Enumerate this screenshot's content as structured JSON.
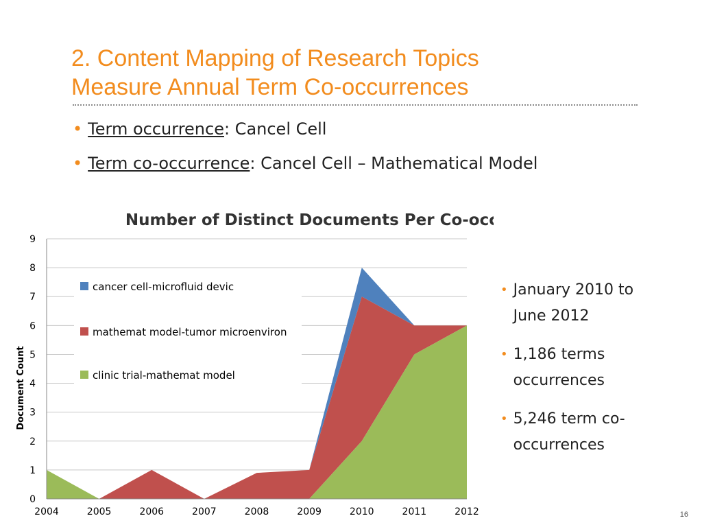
{
  "slide": {
    "title_line1": "2. Content Mapping of Research Topics",
    "title_line2": "Measure Annual Term Co-occurrences",
    "bullets": [
      {
        "term": "Term occurrence",
        "rest": ": Cancel Cell"
      },
      {
        "term": "Term co-occurrence",
        "rest": ": Cancel Cell – Mathematical Model"
      }
    ],
    "side_bullets": [
      "January 2010 to June 2012",
      "1,186 terms occurrences",
      "5,246 term co-occurrences"
    ],
    "page_number": "16"
  },
  "colors": {
    "title": "#F28C1E",
    "bullet": "#F28C1E",
    "series_blue": "#4F81BD",
    "series_red": "#C0504D",
    "series_green": "#9BBB59"
  },
  "chart_data": {
    "type": "area",
    "stacked": true,
    "title": "Number of Distinct Documents Per Co-occurrence",
    "xlabel": "",
    "ylabel": "Document Count",
    "x": [
      "2004",
      "2005",
      "2006",
      "2007",
      "2008",
      "2009",
      "2010",
      "2011",
      "2012"
    ],
    "ylim": [
      0,
      9
    ],
    "yticks": [
      0,
      1,
      2,
      3,
      4,
      5,
      6,
      7,
      8,
      9
    ],
    "grid": true,
    "legend_position": "left",
    "series": [
      {
        "name": "cancer cell-microfluid devic",
        "color": "#4F81BD",
        "values": [
          0,
          0,
          0,
          0,
          0,
          0,
          1,
          0,
          0
        ]
      },
      {
        "name": "mathemat model-tumor microenviron",
        "color": "#C0504D",
        "values": [
          0,
          0,
          1,
          0,
          0.9,
          1,
          5,
          1,
          0
        ]
      },
      {
        "name": "clinic trial-mathemat model",
        "color": "#9BBB59",
        "values": [
          1,
          0,
          0,
          0,
          0,
          0,
          2,
          5,
          6
        ]
      }
    ]
  }
}
